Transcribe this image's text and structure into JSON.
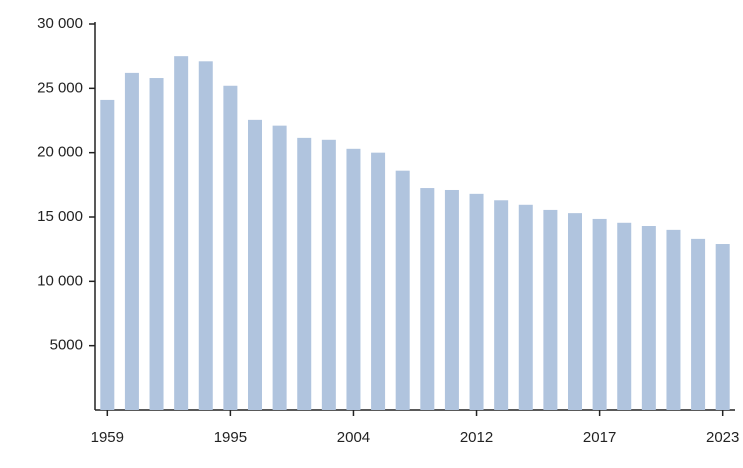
{
  "chart_data": {
    "type": "bar",
    "categories": [
      "1959",
      null,
      null,
      null,
      null,
      "1995",
      null,
      null,
      null,
      null,
      "2004",
      null,
      null,
      null,
      null,
      "2012",
      null,
      null,
      null,
      null,
      "2017",
      null,
      null,
      null,
      null,
      "2023"
    ],
    "values": [
      24100,
      26200,
      25800,
      27500,
      27100,
      25200,
      22550,
      22100,
      21150,
      21000,
      20300,
      20000,
      18600,
      17250,
      17100,
      16800,
      16300,
      15950,
      15550,
      15300,
      14850,
      14550,
      14300,
      14000,
      13300,
      12900
    ],
    "color": "#b0c4de",
    "ylim": [
      0,
      30000
    ],
    "yticks": [
      5000,
      {
        "value": 10000,
        "label": "10 000"
      },
      {
        "value": 15000,
        "label": "15 000"
      },
      {
        "value": 20000,
        "label": "20 000"
      },
      {
        "value": 25000,
        "label": "25 000"
      },
      {
        "value": 30000,
        "label": "30 000"
      }
    ],
    "grid": false
  }
}
